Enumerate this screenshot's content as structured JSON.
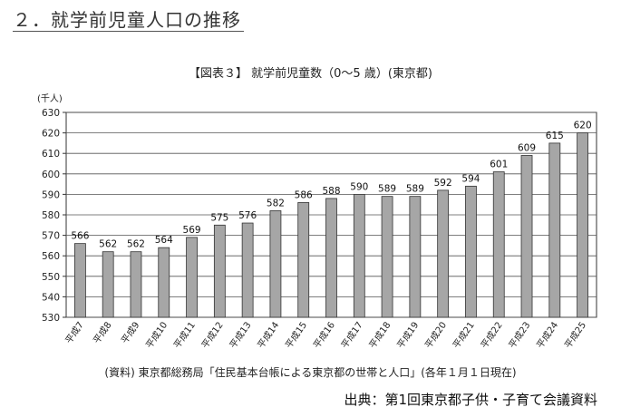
{
  "section_title": "２．就学前児童人口の推移",
  "figure_title": "【図表３】 就学前児童数（0～5 歳）(東京都)",
  "source_note": "(資料) 東京都総務局「住民基本台帳による東京都の世帯と人口」(各年１月１日現在)",
  "credit": "出典：第1回東京都子供・子育て会議資料",
  "colors": {
    "bar_fill": "#a6a6a6",
    "bar_stroke": "#333333",
    "grid": "#555555"
  },
  "chart_data": {
    "type": "bar",
    "categories": [
      "平成7",
      "平成8",
      "平成9",
      "平成10",
      "平成11",
      "平成12",
      "平成13",
      "平成14",
      "平成15",
      "平成16",
      "平成17",
      "平成18",
      "平成19",
      "平成20",
      "平成21",
      "平成22",
      "平成23",
      "平成24",
      "平成25"
    ],
    "values": [
      566,
      562,
      562,
      564,
      569,
      575,
      576,
      582,
      586,
      588,
      590,
      589,
      589,
      592,
      594,
      601,
      609,
      615,
      620
    ],
    "ylabel": "(千人)",
    "ylim": [
      530,
      630
    ],
    "yticks": [
      530,
      540,
      550,
      560,
      570,
      580,
      590,
      600,
      610,
      620,
      630
    ],
    "grid": true,
    "data_labels": true
  }
}
